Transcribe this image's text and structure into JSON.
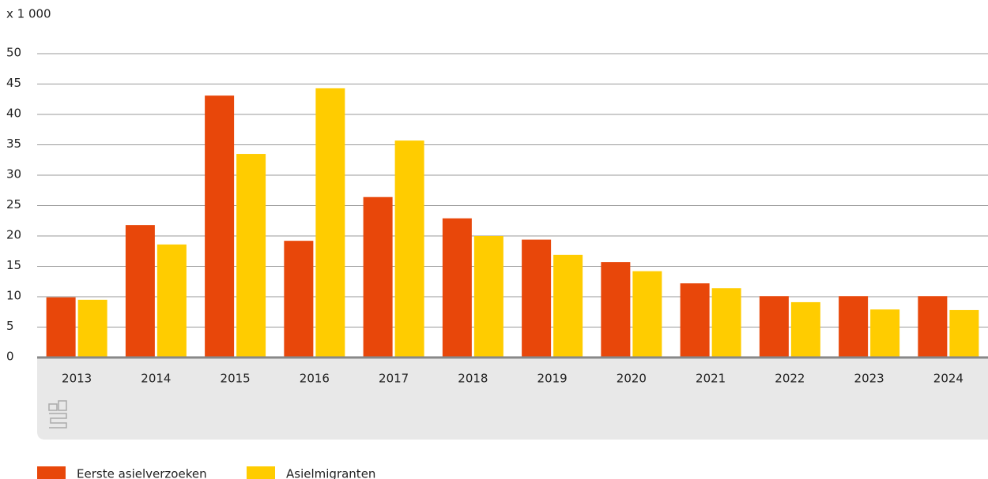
{
  "chart_data": {
    "type": "bar",
    "unit_label": "x 1 000",
    "categories": [
      "2013",
      "2014",
      "2015",
      "2016",
      "2017",
      "2018",
      "2019",
      "2020",
      "2021",
      "2022",
      "2023",
      "2024"
    ],
    "series": [
      {
        "name": "Eerste asielverzoeken",
        "color": "#e8470a",
        "values": [
          9.9,
          21.8,
          43.1,
          19.2,
          26.4,
          22.9,
          19.4,
          15.7,
          12.2,
          10.1,
          10.1,
          10.1
        ]
      },
      {
        "name": "Asielmigranten",
        "color": "#ffcc00",
        "values": [
          9.5,
          18.6,
          33.5,
          44.3,
          35.7,
          20.0,
          16.9,
          14.2,
          11.4,
          9.1,
          7.9,
          7.8
        ]
      }
    ],
    "ylim": [
      0,
      50
    ],
    "yticks": [
      0,
      5,
      10,
      15,
      20,
      25,
      30,
      35,
      40,
      45,
      50
    ],
    "grid": true
  }
}
